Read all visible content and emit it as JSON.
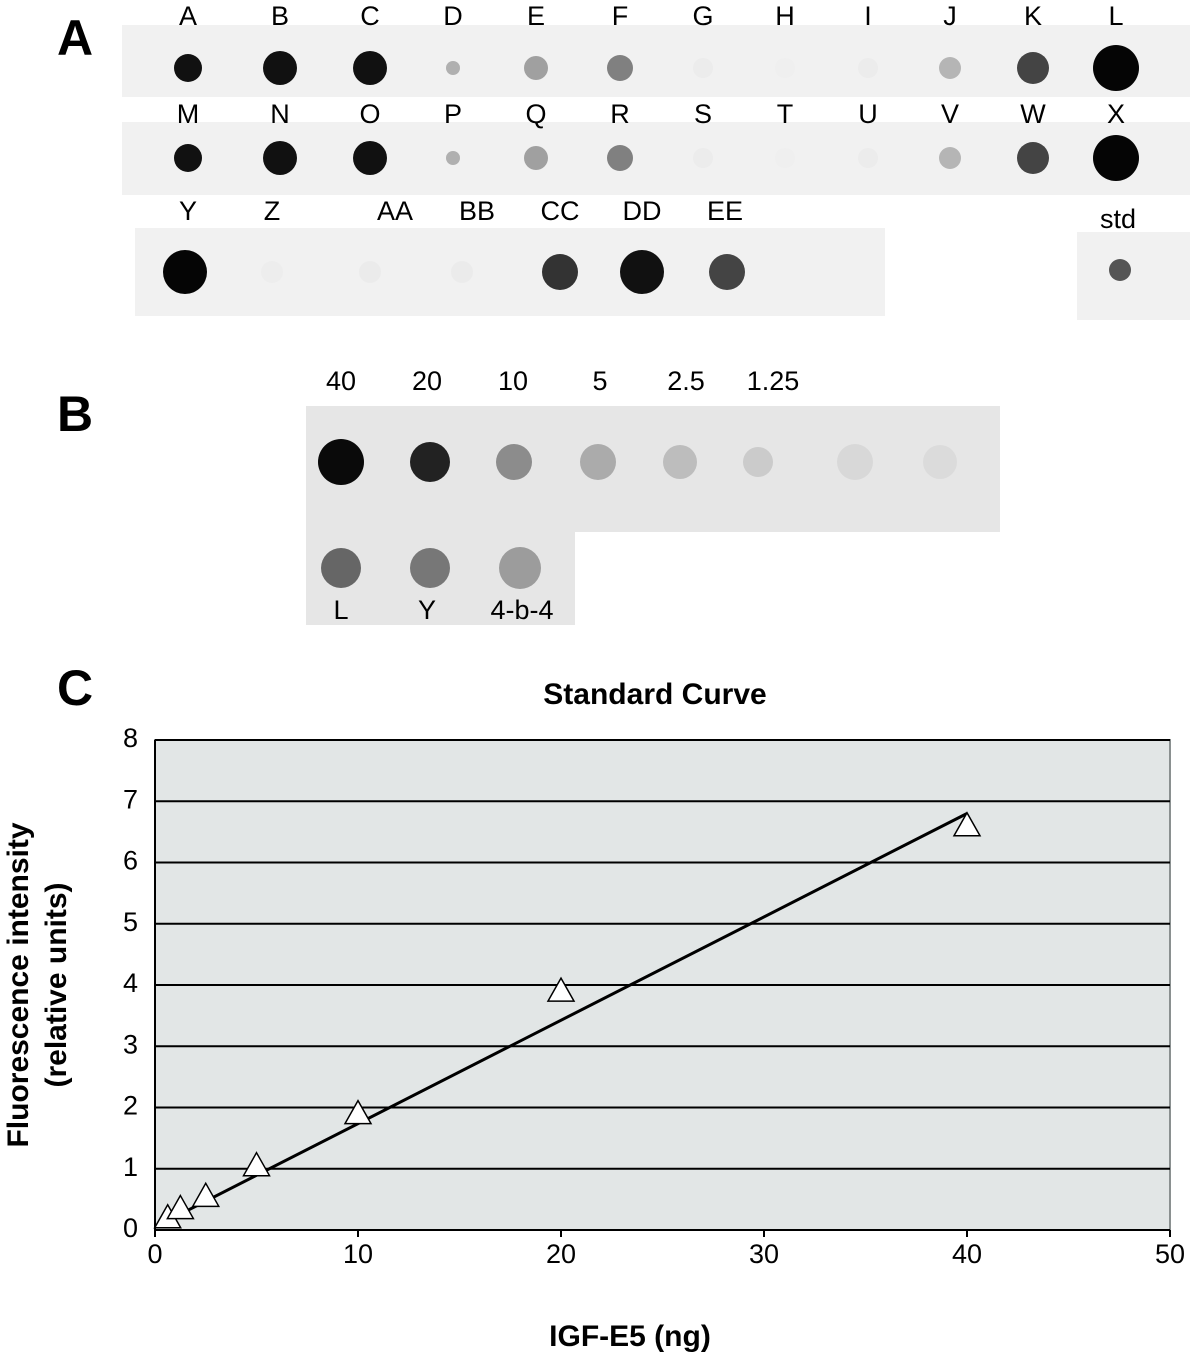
{
  "panel_a": {
    "label": "A",
    "rows": [
      [
        "A",
        "B",
        "C",
        "D",
        "E",
        "F",
        "G",
        "H",
        "I",
        "J",
        "K",
        "L"
      ],
      [
        "M",
        "N",
        "O",
        "P",
        "Q",
        "R",
        "S",
        "T",
        "U",
        "V",
        "W",
        "X"
      ],
      [
        "Y",
        "Z",
        "AA",
        "BB",
        "CC",
        "DD",
        "EE"
      ]
    ],
    "std": "std"
  },
  "panel_b": {
    "label": "B",
    "concentrations": [
      "40",
      "20",
      "10",
      "5",
      "2.5",
      "1.25"
    ],
    "samples": [
      "L",
      "Y",
      "4-b-4"
    ]
  },
  "panel_c": {
    "label": "C"
  },
  "chart_data": {
    "type": "scatter",
    "title": "Standard Curve",
    "xlabel": "IGF-E5 (ng)",
    "ylabel": [
      "Fluorescence intensity",
      "(relative units)"
    ],
    "x": [
      0.625,
      1.25,
      2.5,
      5,
      10,
      20,
      40
    ],
    "values": [
      0.2,
      0.35,
      0.55,
      1.05,
      1.9,
      3.9,
      6.6
    ],
    "trendline": {
      "x": [
        0.6,
        40
      ],
      "y": [
        0.15,
        6.8
      ]
    },
    "xlim": [
      0,
      50
    ],
    "xticks": [
      0,
      10,
      20,
      30,
      40,
      50
    ],
    "ylim": [
      0,
      8
    ],
    "yticks": [
      0,
      1,
      2,
      3,
      4,
      5,
      6,
      7,
      8
    ],
    "grid": true
  }
}
